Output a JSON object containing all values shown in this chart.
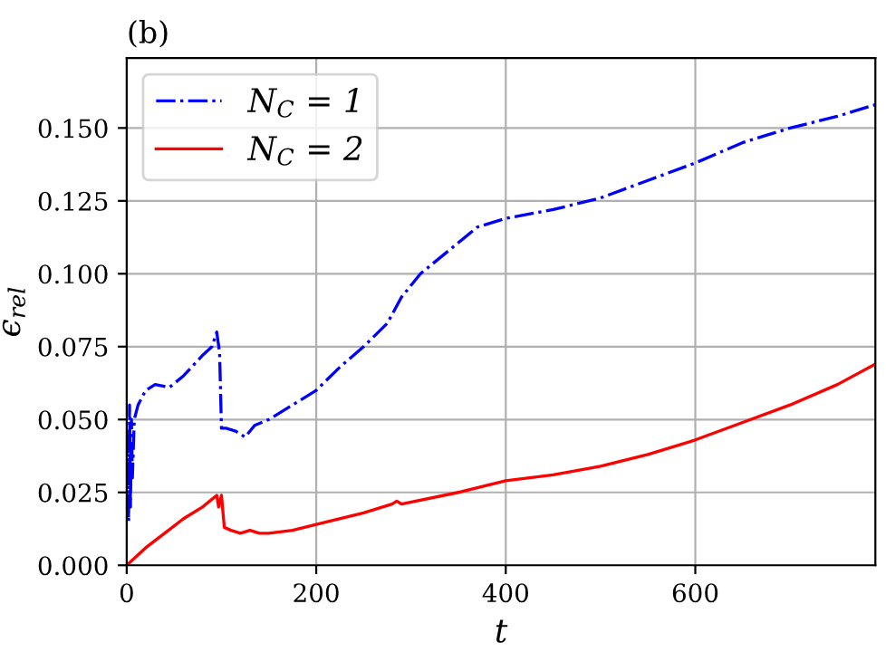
{
  "chart_data": {
    "type": "line",
    "title": "(b)",
    "xlabel": "t",
    "ylabel": "ϵ$_{rel}$",
    "xlim": [
      0,
      790
    ],
    "ylim": [
      0,
      0.174
    ],
    "xticks": [
      0,
      200,
      400,
      600
    ],
    "yticks": [
      {
        "value": 0,
        "label": "0.000"
      },
      {
        "value": 0.025,
        "label": "0.025"
      },
      {
        "value": 0.05,
        "label": "0.050"
      },
      {
        "value": 0.075,
        "label": "0.075"
      },
      {
        "value": 0.1,
        "label": "0.100"
      },
      {
        "value": 0.125,
        "label": "0.125"
      },
      {
        "value": 0.15,
        "label": "0.150"
      }
    ],
    "grid": true,
    "legend": "top left",
    "series": [
      {
        "name": "N$_{C}$ = 1",
        "color": "#0000ff",
        "line_style": "dashdot",
        "x": [
          1,
          2,
          3,
          4,
          5,
          6,
          8,
          12,
          20,
          30,
          45,
          60,
          80,
          90,
          95,
          98,
          100,
          105,
          115,
          125,
          135,
          150,
          175,
          200,
          225,
          250,
          275,
          290,
          310,
          340,
          370,
          400,
          450,
          500,
          550,
          600,
          650,
          700,
          750,
          790
        ],
        "values": [
          0.045,
          0.015,
          0.055,
          0.02,
          0.05,
          0.03,
          0.05,
          0.055,
          0.06,
          0.062,
          0.061,
          0.065,
          0.072,
          0.075,
          0.08,
          0.073,
          0.047,
          0.047,
          0.046,
          0.044,
          0.048,
          0.05,
          0.055,
          0.06,
          0.068,
          0.075,
          0.083,
          0.092,
          0.1,
          0.108,
          0.116,
          0.119,
          0.122,
          0.126,
          0.132,
          0.138,
          0.145,
          0.15,
          0.154,
          0.158
        ]
      },
      {
        "name": "N$_{C}$ = 2",
        "color": "#ff0000",
        "line_style": "solid",
        "x": [
          0,
          20,
          40,
          60,
          80,
          95,
          97,
          100,
          103,
          110,
          120,
          130,
          140,
          150,
          175,
          200,
          250,
          280,
          285,
          290,
          350,
          400,
          450,
          500,
          550,
          600,
          650,
          700,
          750,
          790
        ],
        "values": [
          0,
          0.006,
          0.011,
          0.016,
          0.02,
          0.024,
          0.02,
          0.024,
          0.013,
          0.012,
          0.011,
          0.012,
          0.011,
          0.011,
          0.012,
          0.014,
          0.018,
          0.021,
          0.022,
          0.021,
          0.025,
          0.029,
          0.031,
          0.034,
          0.038,
          0.043,
          0.049,
          0.055,
          0.062,
          0.069
        ]
      }
    ]
  }
}
